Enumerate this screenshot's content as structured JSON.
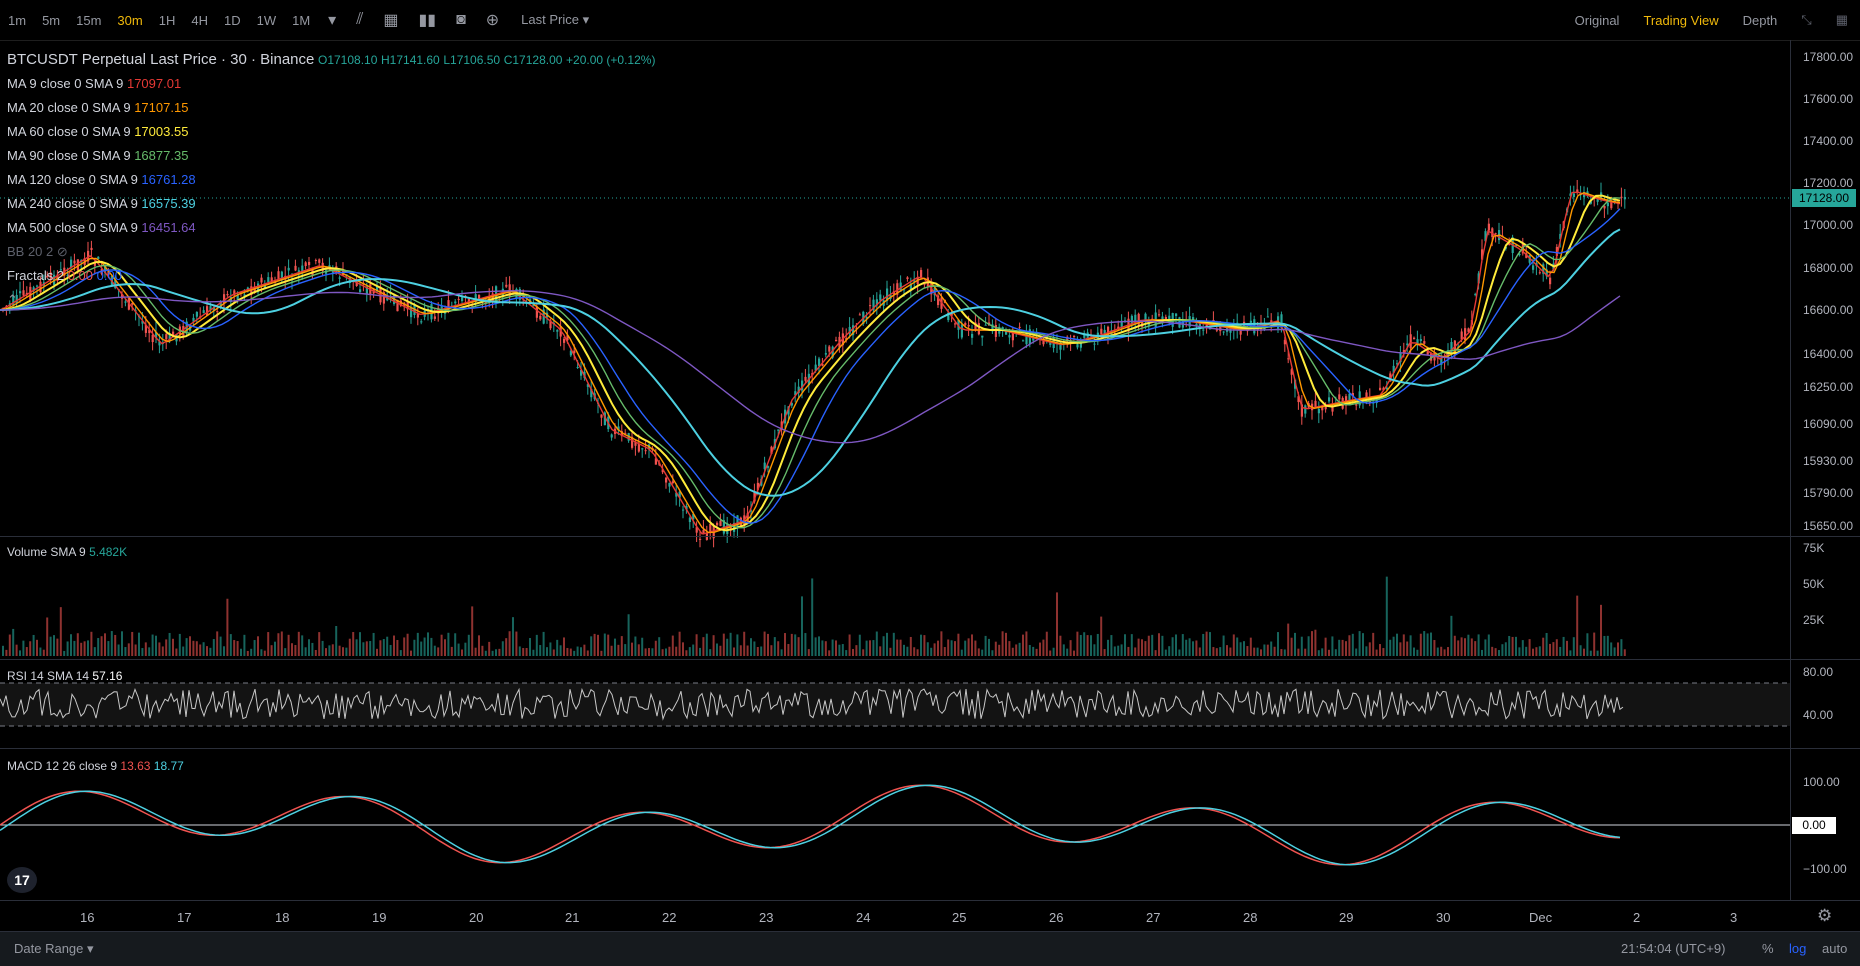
{
  "toolbar": {
    "timeframes": [
      "1m",
      "5m",
      "15m",
      "30m",
      "1H",
      "4H",
      "1D",
      "1W",
      "1M"
    ],
    "active_timeframe": "30m",
    "last_price_label": "Last Price",
    "views": [
      "Original",
      "Trading View",
      "Depth"
    ],
    "active_view": "Trading View"
  },
  "legend": {
    "symbol": "BTCUSDT Perpetual Last Price · 30 · Binance",
    "ohlc": {
      "o": "O17108.10",
      "h": "H17141.60",
      "l": "L17106.50",
      "c": "C17128.00",
      "chg": "+20.00 (+0.12%)"
    },
    "mas": [
      {
        "label": "MA 9 close 0 SMA 9",
        "value": "17097.01",
        "color": "#e53935"
      },
      {
        "label": "MA 20 close 0 SMA 9",
        "value": "17107.15",
        "color": "#ff9800"
      },
      {
        "label": "MA 60 close 0 SMA 9",
        "value": "17003.55",
        "color": "#ffeb3b"
      },
      {
        "label": "MA 90 close 0 SMA 9",
        "value": "16877.35",
        "color": "#66bb6a"
      },
      {
        "label": "MA 120 close 0 SMA 9",
        "value": "16761.28",
        "color": "#2962ff"
      },
      {
        "label": "MA 240 close 0 SMA 9",
        "value": "16575.39",
        "color": "#4dd0e1"
      },
      {
        "label": "MA 500 close 0 SMA 9",
        "value": "16451.64",
        "color": "#7e57c2"
      }
    ],
    "bb_label": "BB 20 2",
    "fractals_label": "Fractals 2",
    "fractals_v1": "0.00",
    "fractals_v2": "0.00"
  },
  "price_axis": [
    "17800.00",
    "17600.00",
    "17400.00",
    "17200.00",
    "17000.00",
    "16800.00",
    "16600.00",
    "16400.00",
    "16250.00",
    "16090.00",
    "15930.00",
    "15790.00",
    "15650.00"
  ],
  "last_price_tag": "17128.00",
  "volume": {
    "label": "Volume SMA 9",
    "value": "5.482K",
    "axis": [
      "75K",
      "50K",
      "25K"
    ]
  },
  "rsi": {
    "label": "RSI 14 SMA 14",
    "value": "57.16",
    "axis": [
      "80.00",
      "40.00"
    ]
  },
  "macd": {
    "label": "MACD 12 26 close 9",
    "v1": "13.63",
    "v2": "18.77",
    "axis": [
      "100.00",
      "0.00",
      "−100.00"
    ]
  },
  "dates": [
    "16",
    "17",
    "18",
    "19",
    "20",
    "21",
    "22",
    "23",
    "24",
    "25",
    "26",
    "27",
    "28",
    "29",
    "30",
    "Dec",
    "2",
    "3"
  ],
  "footer": {
    "date_range": "Date Range",
    "time": "21:54:04 (UTC+9)",
    "pct": "%",
    "log": "log",
    "auto": "auto"
  },
  "colors": {
    "up": "#26a69a",
    "down": "#ef5350",
    "accent": "#f0b90b"
  }
}
